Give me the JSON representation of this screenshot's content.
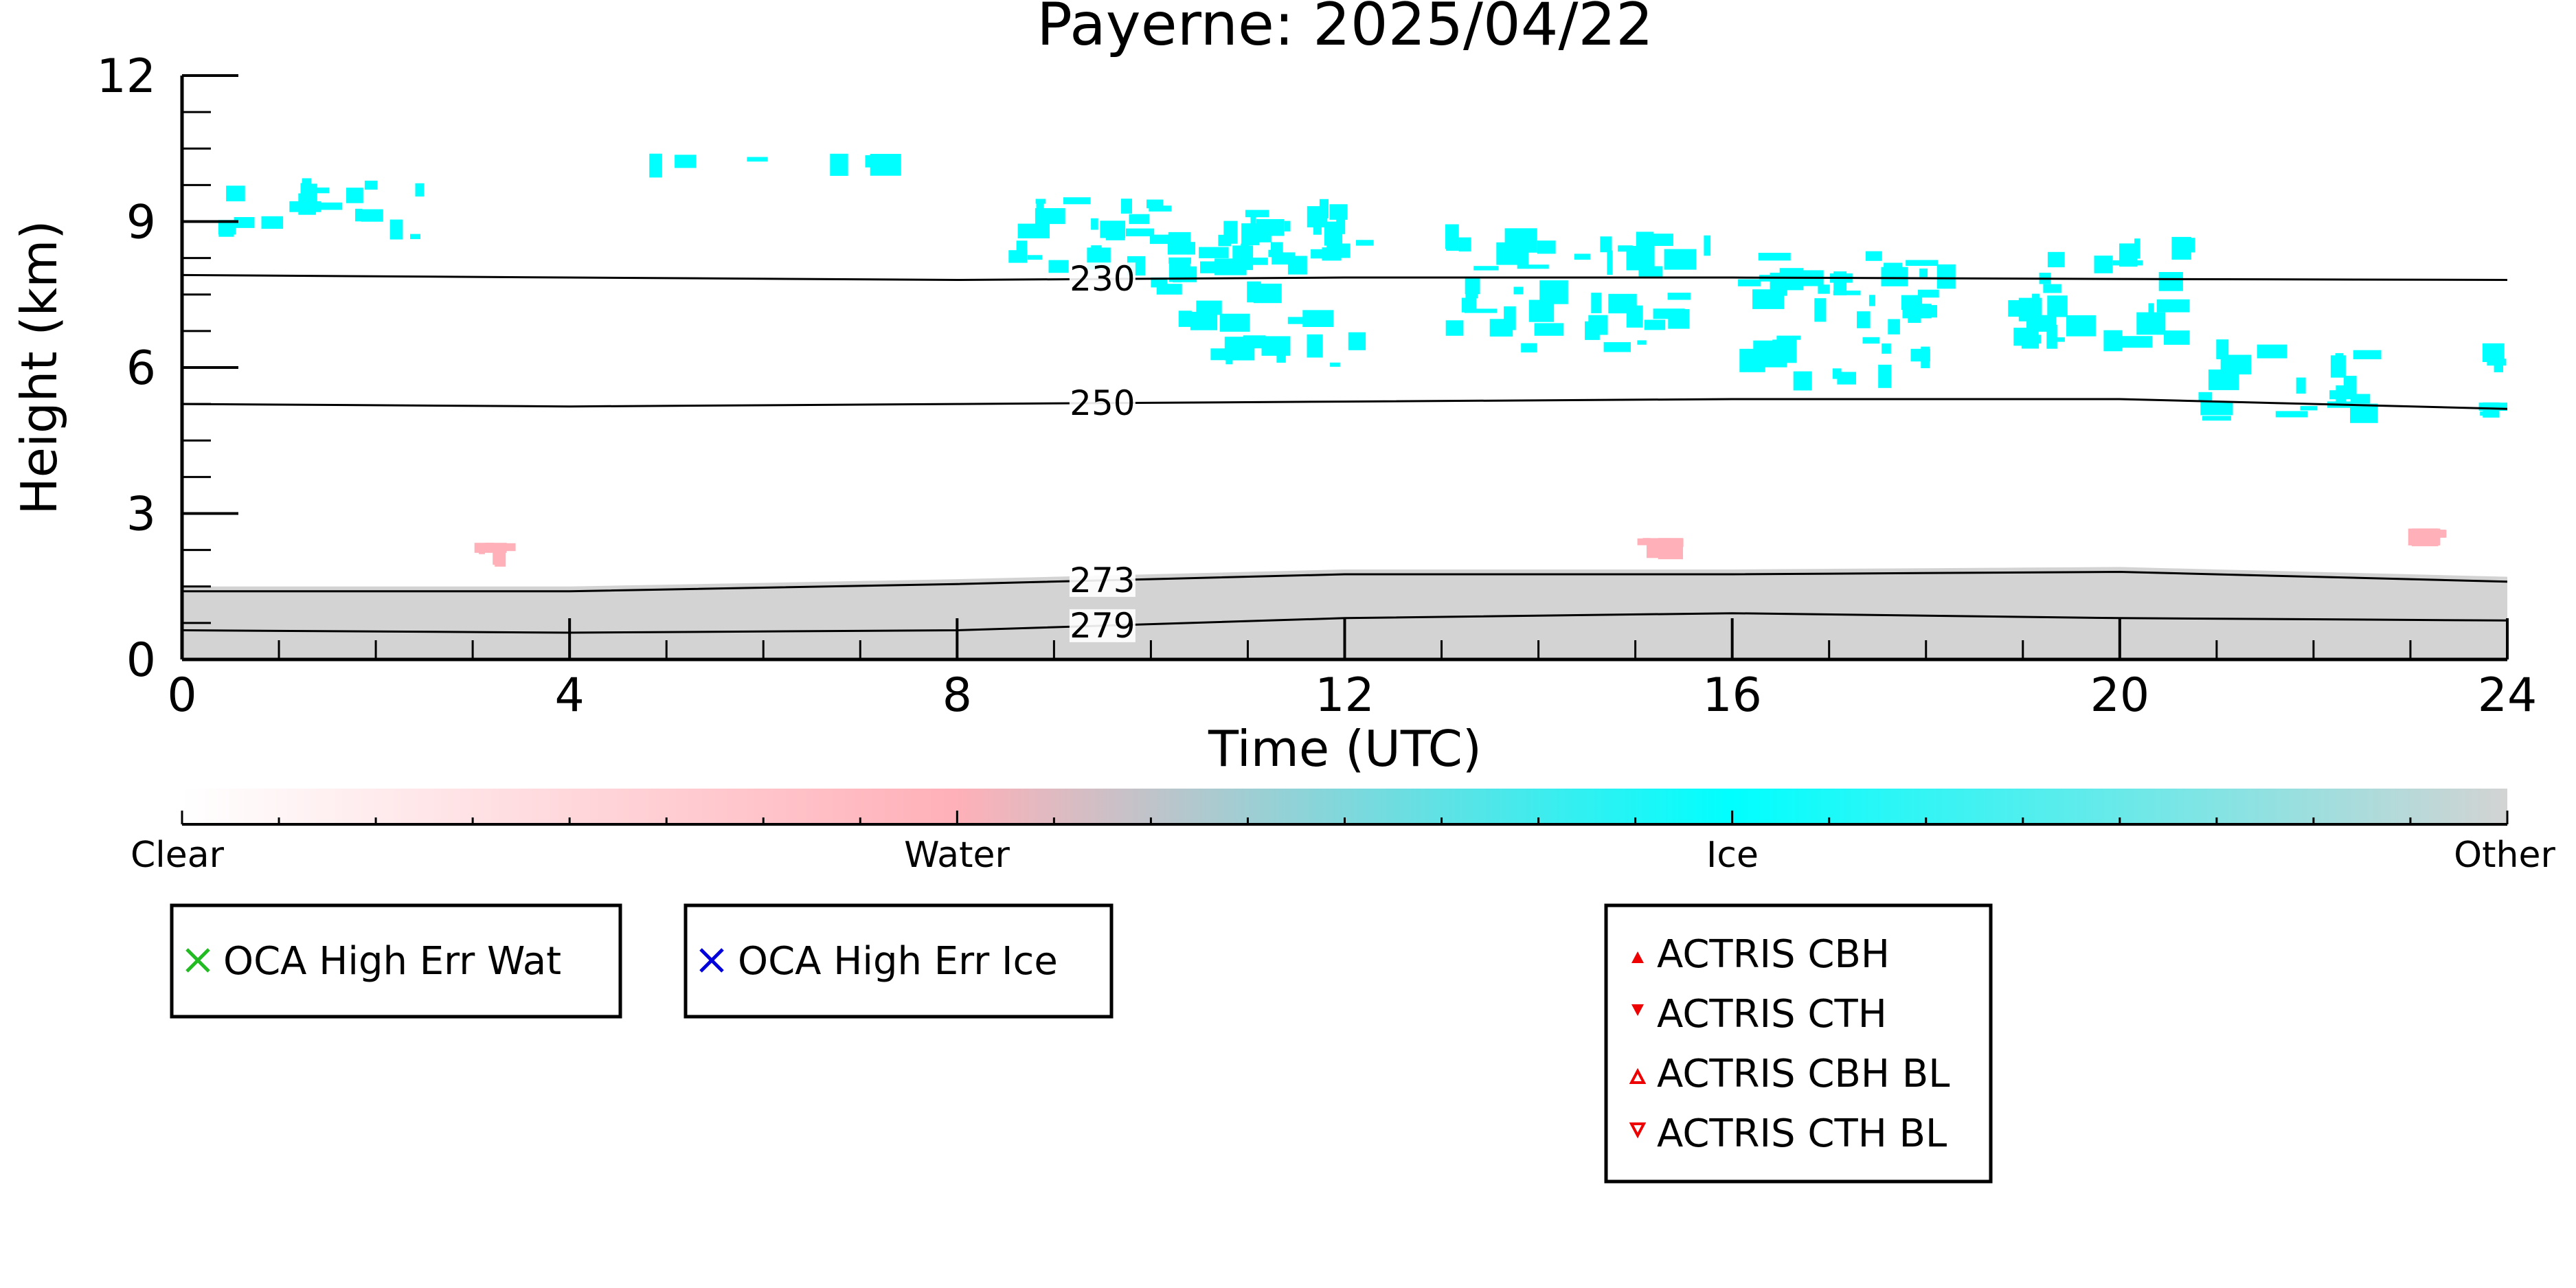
{
  "chart_data": {
    "type": "heatmap",
    "title": "Payerne: 2025/04/22",
    "xlabel": "Time (UTC)",
    "ylabel": "Height (km)",
    "xlim": [
      0,
      24
    ],
    "ylim": [
      0,
      12
    ],
    "x_ticks": [
      "0",
      "4",
      "8",
      "12",
      "16",
      "20",
      "24"
    ],
    "y_ticks": [
      "0",
      "3",
      "6",
      "9",
      "12"
    ],
    "grid": false,
    "colorbar": {
      "labels": [
        "Clear",
        "Water",
        "Ice",
        "Other"
      ],
      "stops": [
        {
          "label": "Clear",
          "color": "#ffffff"
        },
        {
          "label": "Water",
          "color": "#ffb0b8"
        },
        {
          "label": "Ice",
          "color": "#00ffff"
        },
        {
          "label": "Other",
          "color": "#d3d3d3"
        }
      ]
    },
    "temperature_contours": [
      {
        "label": "230",
        "x": [
          0,
          4,
          8,
          12,
          16,
          20,
          24
        ],
        "y": [
          7.9,
          7.85,
          7.8,
          7.85,
          7.85,
          7.82,
          7.8
        ]
      },
      {
        "label": "250",
        "x": [
          0,
          4,
          8,
          12,
          16,
          20,
          24
        ],
        "y": [
          5.25,
          5.2,
          5.25,
          5.3,
          5.35,
          5.35,
          5.15
        ]
      },
      {
        "label": "273",
        "x": [
          0,
          4,
          8,
          12,
          16,
          20,
          24
        ],
        "y": [
          1.4,
          1.4,
          1.55,
          1.75,
          1.75,
          1.8,
          1.6
        ]
      },
      {
        "label": "279",
        "x": [
          0,
          4,
          8,
          12,
          16,
          20,
          24
        ],
        "y": [
          0.6,
          0.55,
          0.6,
          0.85,
          0.95,
          0.85,
          0.8
        ]
      }
    ],
    "ice_cloud_regions": [
      {
        "t_start": 0.2,
        "t_end": 2.6,
        "h_low": 8.6,
        "h_high": 10.0
      },
      {
        "t_start": 4.8,
        "t_end": 8.2,
        "h_low": 10.1,
        "h_high": 10.4
      },
      {
        "t_start": 8.5,
        "t_end": 12.4,
        "h_low": 7.8,
        "h_high": 9.5
      },
      {
        "t_start": 10.0,
        "t_end": 12.3,
        "h_low": 6.0,
        "h_high": 9.2
      },
      {
        "t_start": 13.0,
        "t_end": 15.8,
        "h_low": 6.1,
        "h_high": 9.0
      },
      {
        "t_start": 16.0,
        "t_end": 18.5,
        "h_low": 5.5,
        "h_high": 8.4
      },
      {
        "t_start": 18.8,
        "t_end": 20.8,
        "h_low": 6.2,
        "h_high": 8.7
      },
      {
        "t_start": 20.8,
        "t_end": 22.8,
        "h_low": 4.8,
        "h_high": 6.6
      },
      {
        "t_start": 23.7,
        "t_end": 24.0,
        "h_low": 4.7,
        "h_high": 6.6
      }
    ],
    "water_cloud_regions": [
      {
        "t_start": 3.0,
        "t_end": 3.5,
        "h_low": 2.2,
        "h_high": 2.4
      },
      {
        "t_start": 15.0,
        "t_end": 15.5,
        "h_low": 2.3,
        "h_high": 2.5
      },
      {
        "t_start": 22.8,
        "t_end": 23.5,
        "h_low": 2.5,
        "h_high": 2.7
      }
    ],
    "legend_boxes": [
      {
        "label": "OCA High Err Wat",
        "marker": "x",
        "color": "#22bb22"
      },
      {
        "label": "OCA High Err Ice",
        "marker": "x",
        "color": "#0000dd"
      },
      {
        "label": "ACTRIS CBH",
        "marker": "triangle-up-filled",
        "color": "#ee0000"
      },
      {
        "label": "ACTRIS CTH",
        "marker": "triangle-down-filled",
        "color": "#ee0000"
      },
      {
        "label": "ACTRIS CBH BL",
        "marker": "triangle-up-open",
        "color": "#ee0000"
      },
      {
        "label": "ACTRIS CTH BL",
        "marker": "triangle-down-open",
        "color": "#ee0000"
      }
    ]
  }
}
